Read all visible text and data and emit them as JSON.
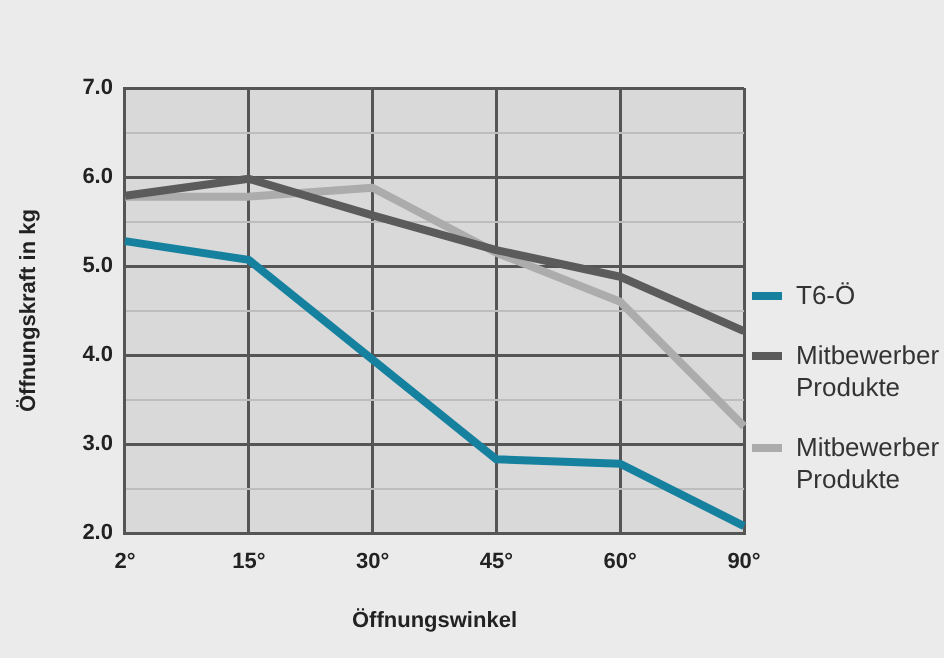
{
  "chart_data": {
    "type": "line",
    "xlabel": "Öffnungswinkel",
    "ylabel": "Öffnungskraft in kg",
    "categories": [
      "2°",
      "15°",
      "30°",
      "45°",
      "60°",
      "90°"
    ],
    "series": [
      {
        "name": "T6-Ö",
        "color": "#16819f",
        "values": [
          5.28,
          5.07,
          3.95,
          2.83,
          2.78,
          2.08
        ]
      },
      {
        "name": "Mitbewerber Produkte",
        "color": "#5b5b5b",
        "values": [
          5.79,
          5.98,
          5.57,
          5.18,
          4.88,
          4.27
        ]
      },
      {
        "name": "Mitbewerber Produkte",
        "color": "#acacac",
        "values": [
          5.78,
          5.78,
          5.88,
          5.15,
          4.6,
          3.2
        ]
      }
    ],
    "ylim": [
      2,
      7
    ],
    "yticks": [
      {
        "value": 2,
        "label": "2.0"
      },
      {
        "value": 2.5,
        "label": null
      },
      {
        "value": 3,
        "label": "3.0"
      },
      {
        "value": 3.5,
        "label": null
      },
      {
        "value": 4,
        "label": "4.0"
      },
      {
        "value": 4.5,
        "label": null
      },
      {
        "value": 5,
        "label": "5.0"
      },
      {
        "value": 5.5,
        "label": null
      },
      {
        "value": 6,
        "label": "6.0"
      },
      {
        "value": 6.5,
        "label": null
      },
      {
        "value": 7,
        "label": "7.0"
      }
    ],
    "grid": true,
    "legend": "right",
    "marker": "none",
    "line_style": "solid"
  }
}
